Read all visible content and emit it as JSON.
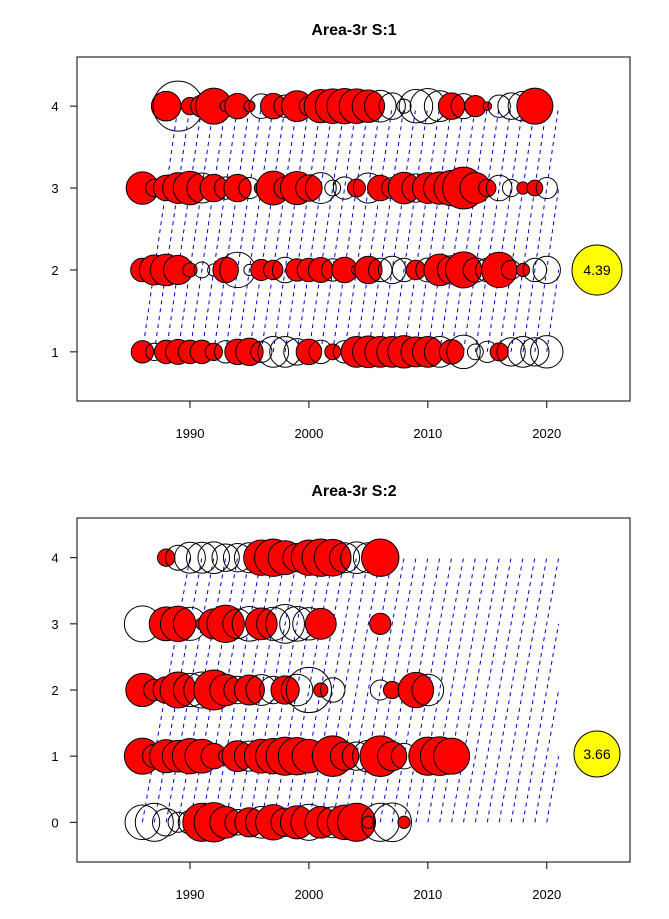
{
  "chart_data": [
    {
      "type": "scatter",
      "title": "Area-3r S:1",
      "xlabel": "",
      "ylabel": "",
      "xlim": [
        1980.5,
        2027
      ],
      "ylim": [
        0.4,
        4.6
      ],
      "xticks": [
        1990,
        2000,
        2010,
        2020
      ],
      "yticks": [
        1,
        2,
        3,
        4
      ],
      "years": [
        1986,
        2021
      ],
      "cohort_lines": true,
      "max_label": "4.39",
      "colors": {
        "positive": "#ff0000",
        "negative": "#ffffff",
        "max_bubble": "#ffff00",
        "cohort": "#0000cc"
      },
      "series": [
        {
          "y": 4,
          "start": 1988,
          "residuals": [
            0.35,
            -1.0,
            0.12,
            0.2,
            0.52,
            0.05,
            0.26,
            0.05,
            -0.24,
            0.26,
            -0.2,
            0.38,
            -0.15,
            0.44,
            0.48,
            0.5,
            0.48,
            0.42,
            -0.4,
            -0.28,
            -0.08,
            -0.45,
            -0.5,
            -0.38,
            0.28,
            -0.25,
            0.18,
            0.03,
            -0.2,
            -0.28,
            -0.35,
            0.52
          ]
        },
        {
          "y": 3,
          "start": 1986,
          "residuals": [
            0.42,
            0.12,
            0.26,
            0.38,
            0.45,
            -0.36,
            0.3,
            -0.2,
            0.3,
            -0.18,
            0.08,
            0.46,
            -0.2,
            0.44,
            0.28,
            -0.38,
            -0.1,
            -0.2,
            0.13,
            -0.36,
            0.26,
            -0.18,
            0.4,
            -0.32,
            0.38,
            0.42,
            0.5,
            0.7,
            0.38,
            0.12,
            -0.26,
            -0.12,
            0.06,
            0.1,
            -0.18
          ]
        },
        {
          "y": 2,
          "start": 1986,
          "residuals": [
            0.22,
            0.36,
            0.4,
            0.34,
            0.08,
            -0.1,
            -0.06,
            0.26,
            -0.5,
            -0.05,
            0.18,
            0.15,
            -0.26,
            0.2,
            0.22,
            0.25,
            -0.2,
            0.26,
            0.04,
            0.3,
            -0.22,
            -0.3,
            -0.22,
            0.15,
            -0.23,
            0.4,
            -0.32,
            0.52,
            -0.24,
            -0.22,
            0.5,
            -0.15,
            0.07,
            -0.22,
            -0.3
          ]
        },
        {
          "y": 1,
          "start": 1986,
          "residuals": [
            0.2,
            -0.12,
            0.22,
            0.25,
            0.22,
            0.22,
            0.12,
            -0.2,
            0.26,
            0.3,
            -0.18,
            -0.38,
            -0.38,
            -0.28,
            0.26,
            -0.22,
            0.1,
            -0.2,
            0.38,
            0.4,
            0.38,
            0.38,
            0.42,
            0.36,
            0.38,
            -0.38,
            0.24,
            -0.45,
            -0.1,
            -0.18,
            0.13,
            -0.32,
            -0.38,
            -0.32,
            -0.42
          ]
        }
      ]
    },
    {
      "type": "scatter",
      "title": "Area-3r S:2",
      "xlabel": "",
      "ylabel": "",
      "xlim": [
        1980.5,
        2027
      ],
      "ylim": [
        -0.6,
        4.6
      ],
      "xticks": [
        1990,
        2000,
        2010,
        2020
      ],
      "yticks": [
        0,
        1,
        2,
        3,
        4
      ],
      "years": [
        1986,
        2021
      ],
      "cohort_lines": true,
      "max_label": "3.66",
      "colors": {
        "positive": "#ff0000",
        "negative": "#ffffff",
        "max_bubble": "#ffff00",
        "cohort": "#0000cc"
      },
      "series": [
        {
          "y": 4,
          "start": 1988,
          "residuals": [
            0.12,
            -0.25,
            -0.38,
            -0.38,
            -0.4,
            -0.3,
            -0.32,
            -0.36,
            0.5,
            0.56,
            0.46,
            -0.32,
            0.5,
            0.56,
            0.54,
            -0.36,
            -0.4,
            -0.36,
            0.56
          ]
        },
        {
          "y": 3,
          "start": 1986,
          "residuals": [
            -0.52,
            null,
            0.46,
            0.5,
            -0.44,
            0.06,
            0.36,
            0.56,
            -0.35,
            -0.48,
            0.4,
            -0.44,
            -0.6,
            -0.48,
            -0.42,
            0.38,
            null,
            null,
            null,
            null,
            0.18
          ]
        },
        {
          "y": 2,
          "start": 1986,
          "residuals": [
            0.44,
            0.18,
            0.28,
            0.52,
            -0.44,
            -0.52,
            0.64,
            0.4,
            -0.3,
            0.36,
            -0.38,
            -0.3,
            0.32,
            -0.4,
            -0.82,
            0.08,
            -0.24,
            null,
            null,
            null,
            -0.16,
            0.12,
            null,
            0.5,
            -0.4
          ]
        },
        {
          "y": 1,
          "start": 1986,
          "residuals": [
            0.52,
            0.22,
            0.44,
            0.4,
            0.5,
            0.46,
            0.26,
            0.08,
            0.38,
            -0.36,
            0.46,
            0.5,
            0.58,
            0.56,
            0.45,
            -0.12,
            0.66,
            0.32,
            -0.32,
            -0.4,
            0.66,
            0.34,
            -0.26,
            0.08,
            0.58,
            0.6,
            0.52
          ]
        },
        {
          "y": 0,
          "start": 1986,
          "residuals": [
            -0.48,
            -0.58,
            -0.3,
            -0.16,
            -0.22,
            0.58,
            0.62,
            0.4,
            -0.26,
            0.34,
            -0.4,
            0.5,
            -0.32,
            0.44,
            -0.52,
            0.4,
            -0.38,
            0.48,
            0.58,
            0.06,
            -0.58,
            -0.6,
            0.06
          ]
        }
      ]
    }
  ]
}
